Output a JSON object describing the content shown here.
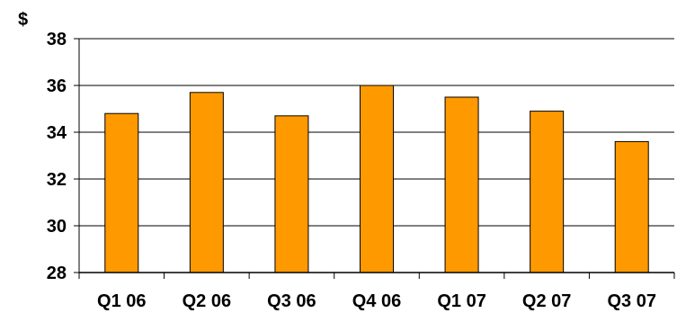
{
  "chart_data": {
    "type": "bar",
    "title": "",
    "xlabel": "",
    "ylabel": "$",
    "categories": [
      "Q1 06",
      "Q2 06",
      "Q3 06",
      "Q4 06",
      "Q1 07",
      "Q2 07",
      "Q3 07"
    ],
    "values": [
      34.8,
      35.7,
      34.7,
      36.0,
      35.5,
      34.9,
      33.6
    ],
    "ylim": [
      28,
      38
    ],
    "yticks": [
      "28",
      "30",
      "32",
      "34",
      "36",
      "38"
    ],
    "grid": "horizontal",
    "legend": "none",
    "colors": {
      "bar": "#FF9900",
      "bar_stroke": "#000000",
      "grid": "#000000"
    }
  }
}
